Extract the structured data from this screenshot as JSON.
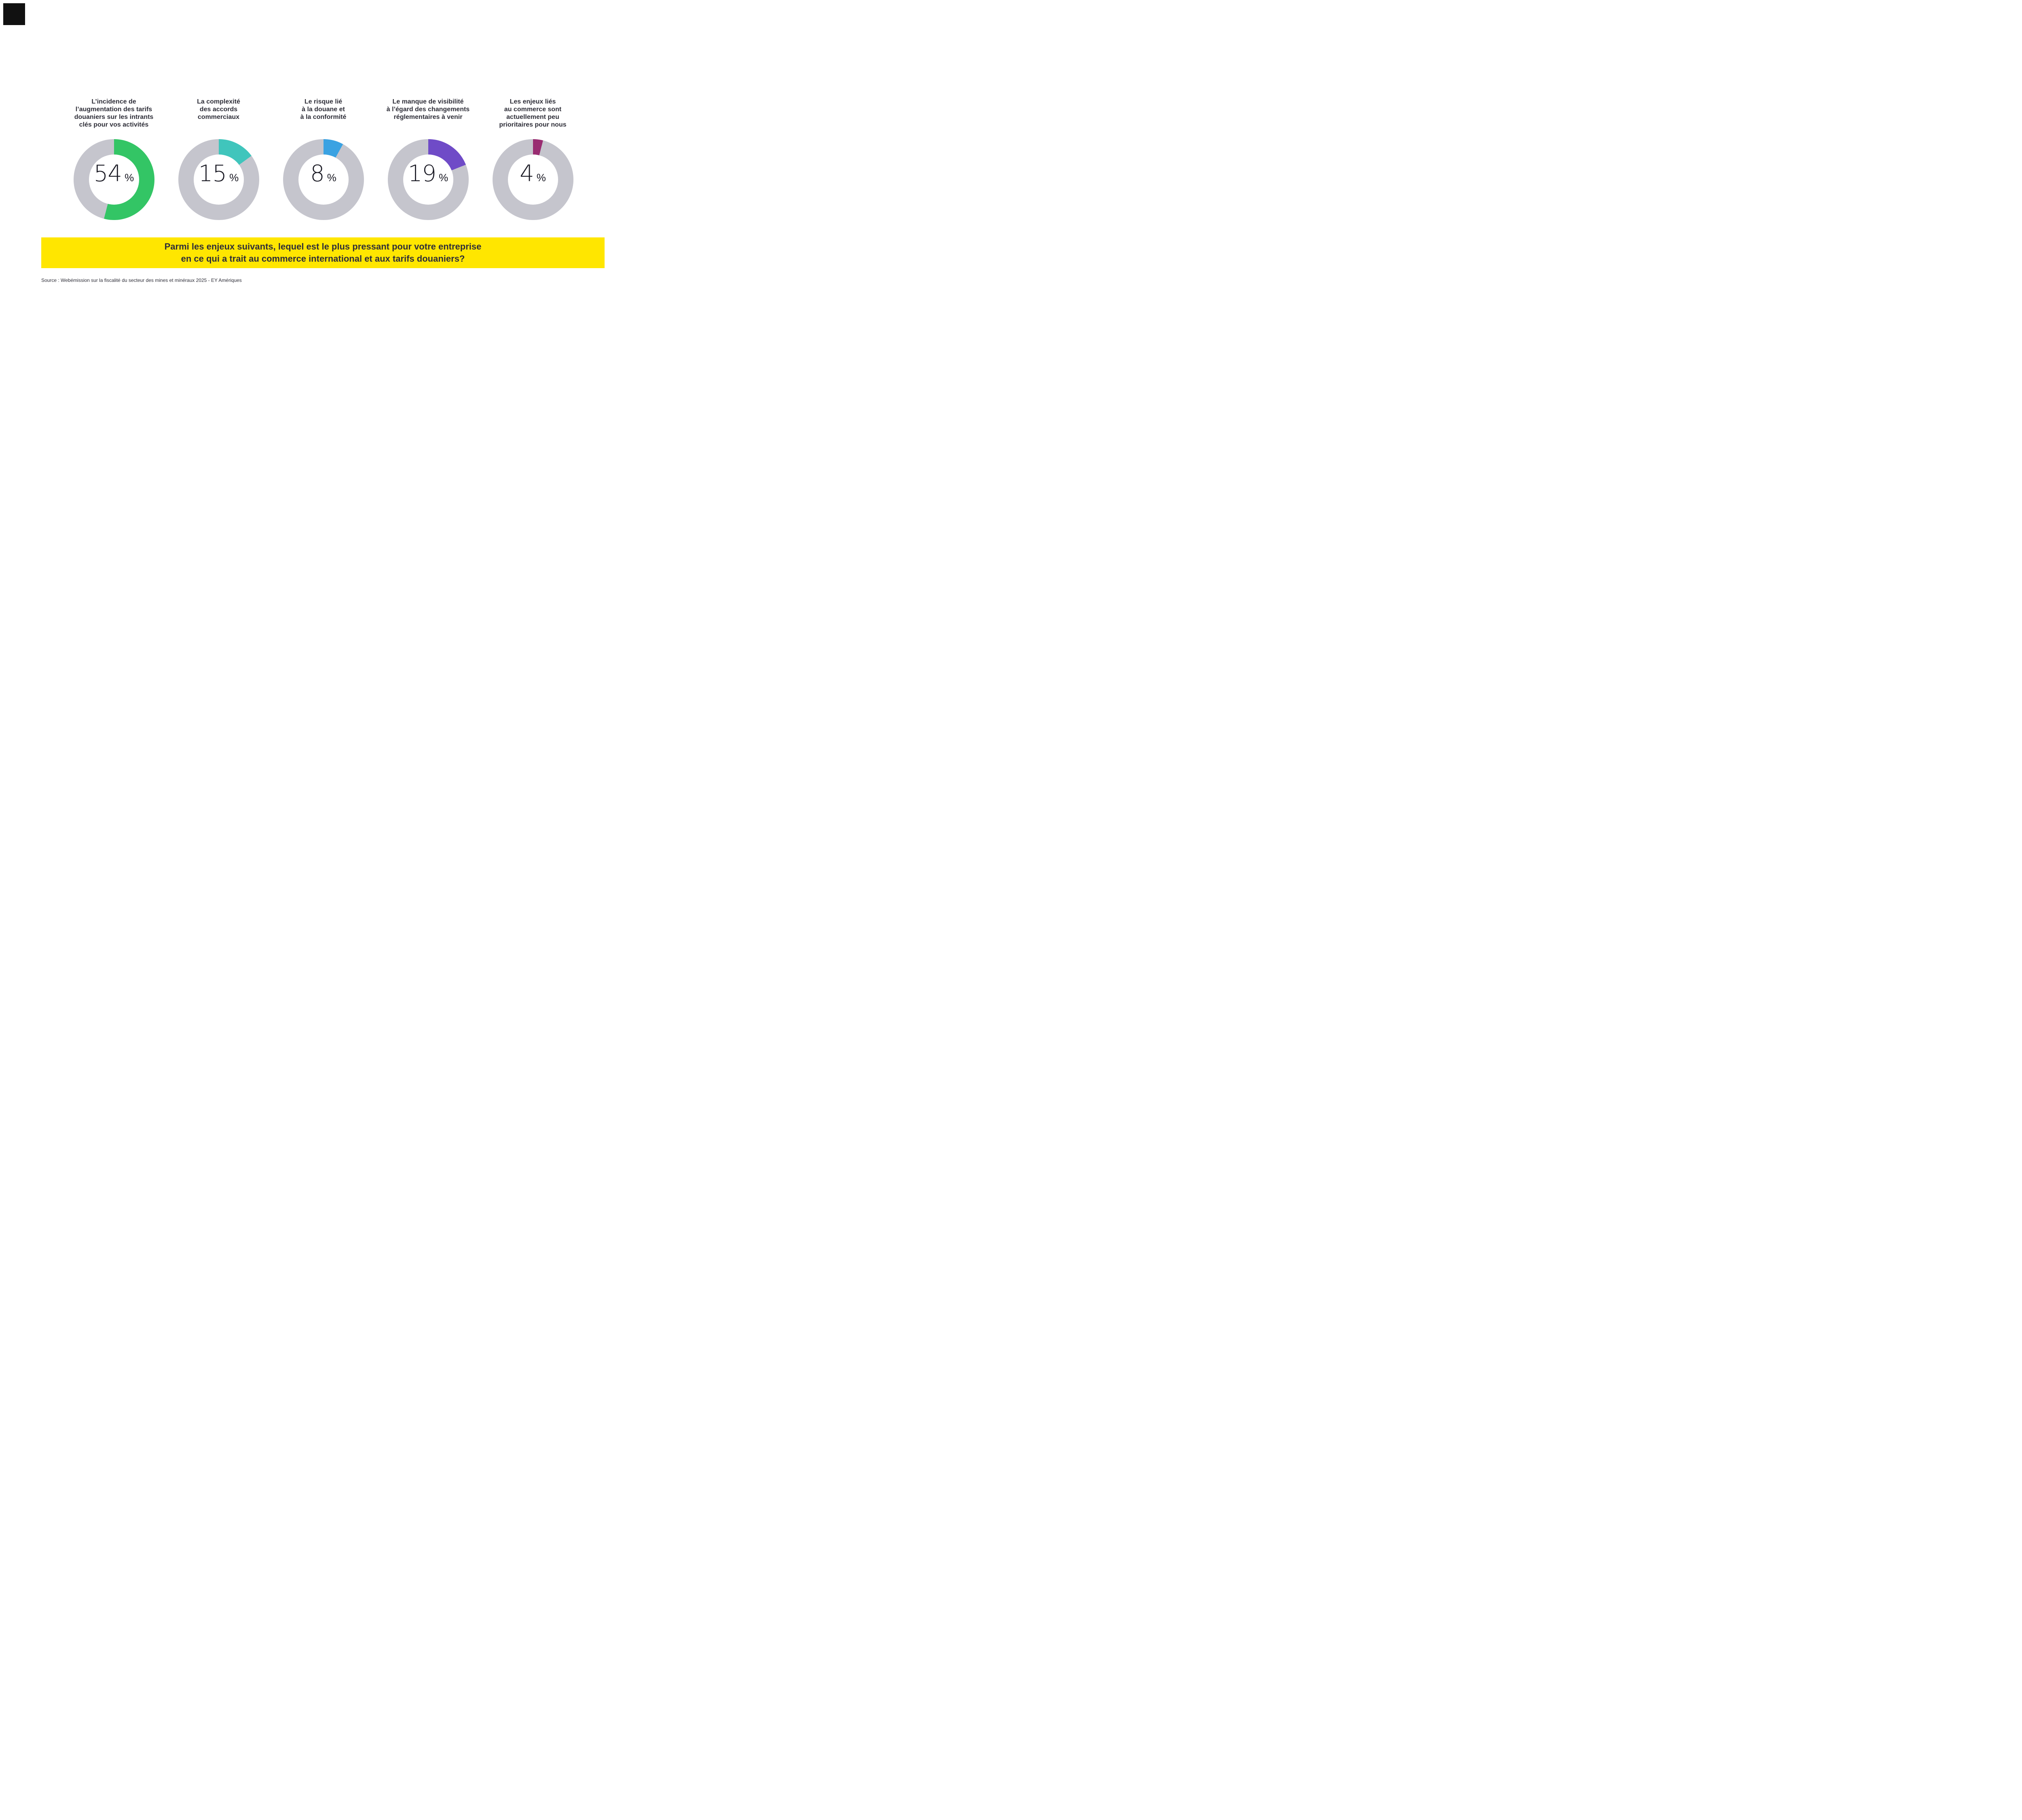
{
  "logo_block": {
    "color": "#111111"
  },
  "donut_chart": {
    "track_color": "#C5C5CD",
    "label_color": "#2E2E38",
    "value_color": "#1A1A24",
    "unit": "%",
    "items": [
      {
        "label_lines": [
          "L’incidence de",
          "l’augmentation des tarifs",
          "douaniers sur les intrants",
          "clés pour vos activités"
        ],
        "value": 54,
        "color": "#33C565"
      },
      {
        "label_lines": [
          "La complexité",
          "des accords",
          "commerciaux"
        ],
        "value": 15,
        "color": "#40C5BC"
      },
      {
        "label_lines": [
          "Le risque lié",
          "à la douane et",
          "à la conformité"
        ],
        "value": 8,
        "color": "#3AA2E2"
      },
      {
        "label_lines": [
          "Le manque de visibilité",
          "à l’égard des changements",
          "réglementaires à venir"
        ],
        "value": 19,
        "color": "#6F4BC7"
      },
      {
        "label_lines": [
          "Les enjeux liés",
          "au commerce sont",
          "actuellement peu",
          "prioritaires pour nous"
        ],
        "value": 4,
        "color": "#992C71"
      }
    ]
  },
  "question_banner": {
    "line1": "Parmi les enjeux suivants, lequel est le plus pressant pour votre entreprise",
    "line2": "en ce qui a trait au commerce international et aux tarifs douaniers?",
    "background": "#FFE600",
    "text_color": "#2E2E38"
  },
  "source": {
    "text": "Source : Webémission sur la fiscalité du secteur des mines et minéraux 2025 - EY Amériques",
    "text_color": "#2E2E38"
  },
  "chart_data": {
    "type": "pie",
    "subtype": "donut-small-multiples",
    "categories": [
      "L’incidence de l’augmentation des tarifs douaniers sur les intrants clés pour vos activités",
      "La complexité des accords commerciaux",
      "Le risque lié à la douane et à la conformité",
      "Le manque de visibilité à l’égard des changements réglementaires à venir",
      "Les enjeux liés au commerce sont actuellement peu prioritaires pour nous"
    ],
    "values": [
      54,
      15,
      8,
      19,
      4
    ],
    "unit": "%",
    "colors": [
      "#33C565",
      "#40C5BC",
      "#3AA2E2",
      "#6F4BC7",
      "#992C71"
    ],
    "track_color": "#C5C5CD",
    "title": "Parmi les enjeux suivants, lequel est le plus pressant pour votre entreprise en ce qui a trait au commerce international et aux tarifs douaniers?",
    "source": "Source : Webémission sur la fiscalité du secteur des mines et minéraux 2025 - EY Amériques",
    "legend_position": "none",
    "segment_start_angle_deg": 0,
    "direction": "clockwise"
  }
}
